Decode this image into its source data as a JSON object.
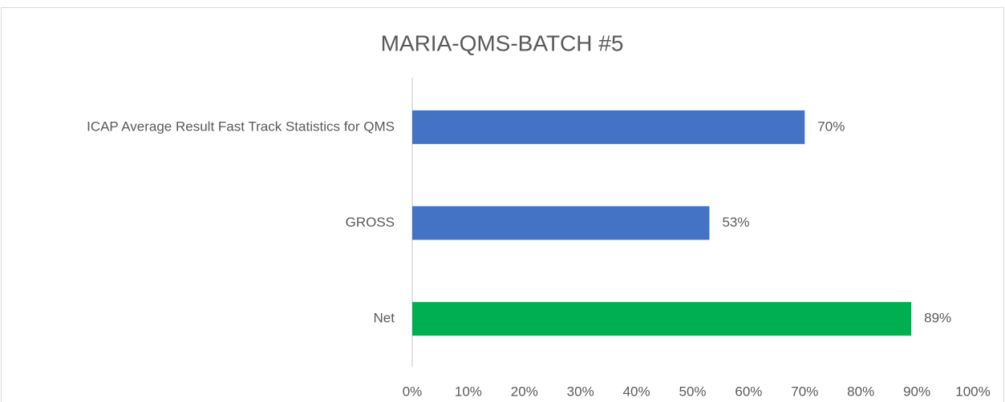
{
  "chart_data": {
    "type": "barh",
    "title": "MARIA-QMS-BATCH #5",
    "categories": [
      "ICAP Average Result Fast Track Statistics for QMS",
      "GROSS",
      "Net"
    ],
    "values": [
      70,
      53,
      89
    ],
    "value_labels": [
      "70%",
      "53%",
      "89%"
    ],
    "colors": [
      "#4472c4",
      "#4472c4",
      "#00b050"
    ],
    "xlim": [
      0,
      100
    ],
    "xticks": [
      {
        "value": 0,
        "label": "0%"
      },
      {
        "value": 10,
        "label": "10%"
      },
      {
        "value": 20,
        "label": "20%"
      },
      {
        "value": 30,
        "label": "30%"
      },
      {
        "value": 40,
        "label": "40%"
      },
      {
        "value": 50,
        "label": "50%"
      },
      {
        "value": 60,
        "label": "60%"
      },
      {
        "value": 70,
        "label": "70%"
      },
      {
        "value": 80,
        "label": "80%"
      },
      {
        "value": 90,
        "label": "90%"
      },
      {
        "value": 100,
        "label": "100%"
      }
    ],
    "grid": false
  }
}
